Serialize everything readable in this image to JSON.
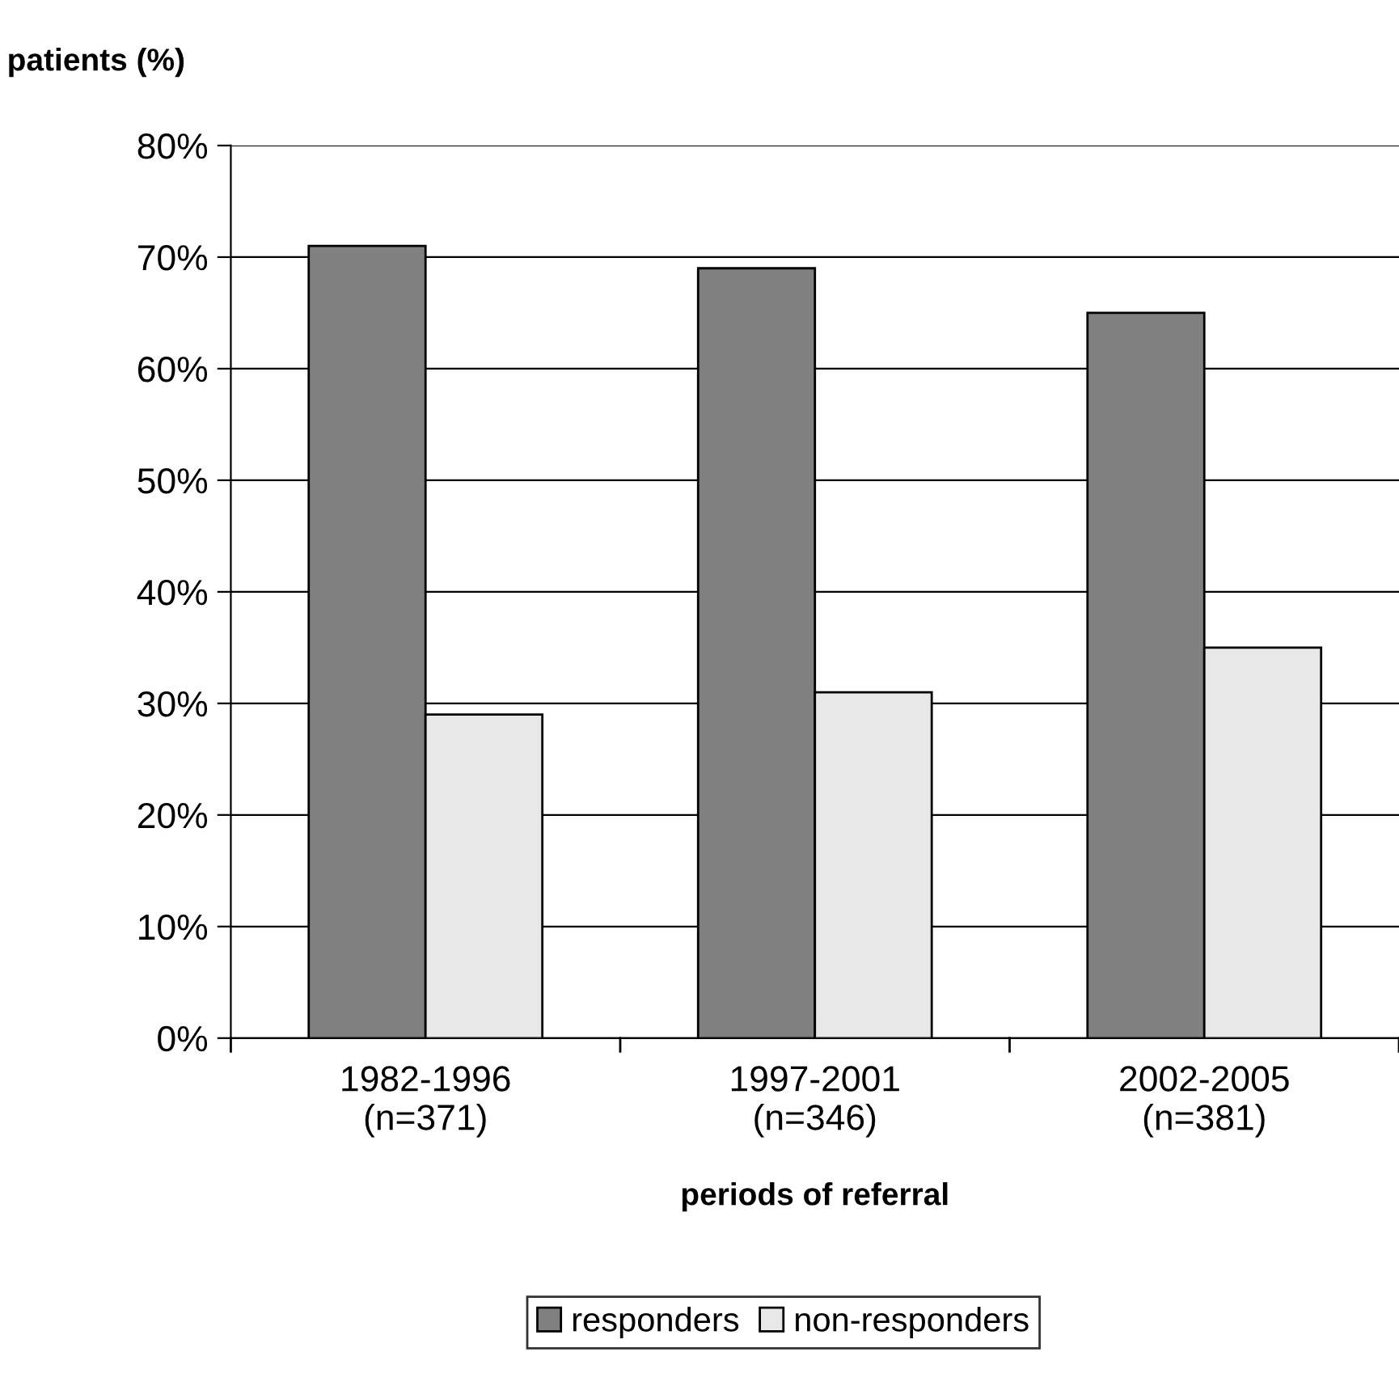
{
  "chart_data": {
    "type": "bar",
    "ylabel": "patients (%)",
    "xlabel": "periods of referral",
    "categories": [
      "1982-1996\n(n=371)",
      "1997-2001\n(n=346)",
      "2002-2005\n(n=381)"
    ],
    "series": [
      {
        "name": "responders",
        "color": "#808080",
        "values": [
          71,
          69,
          65
        ]
      },
      {
        "name": "non-responders",
        "color": "#e8e8e8",
        "values": [
          29,
          31,
          35
        ]
      }
    ],
    "ylim": [
      0,
      80
    ],
    "yticks": [
      {
        "value": 0,
        "label": "0%"
      },
      {
        "value": 10,
        "label": "10%"
      },
      {
        "value": 20,
        "label": "20%"
      },
      {
        "value": 30,
        "label": "30%"
      },
      {
        "value": 40,
        "label": "40%"
      },
      {
        "value": 50,
        "label": "50%"
      },
      {
        "value": 60,
        "label": "60%"
      },
      {
        "value": 70,
        "label": "70%"
      },
      {
        "value": 80,
        "label": "80%"
      }
    ],
    "grid": "y",
    "legend": "bottom"
  }
}
